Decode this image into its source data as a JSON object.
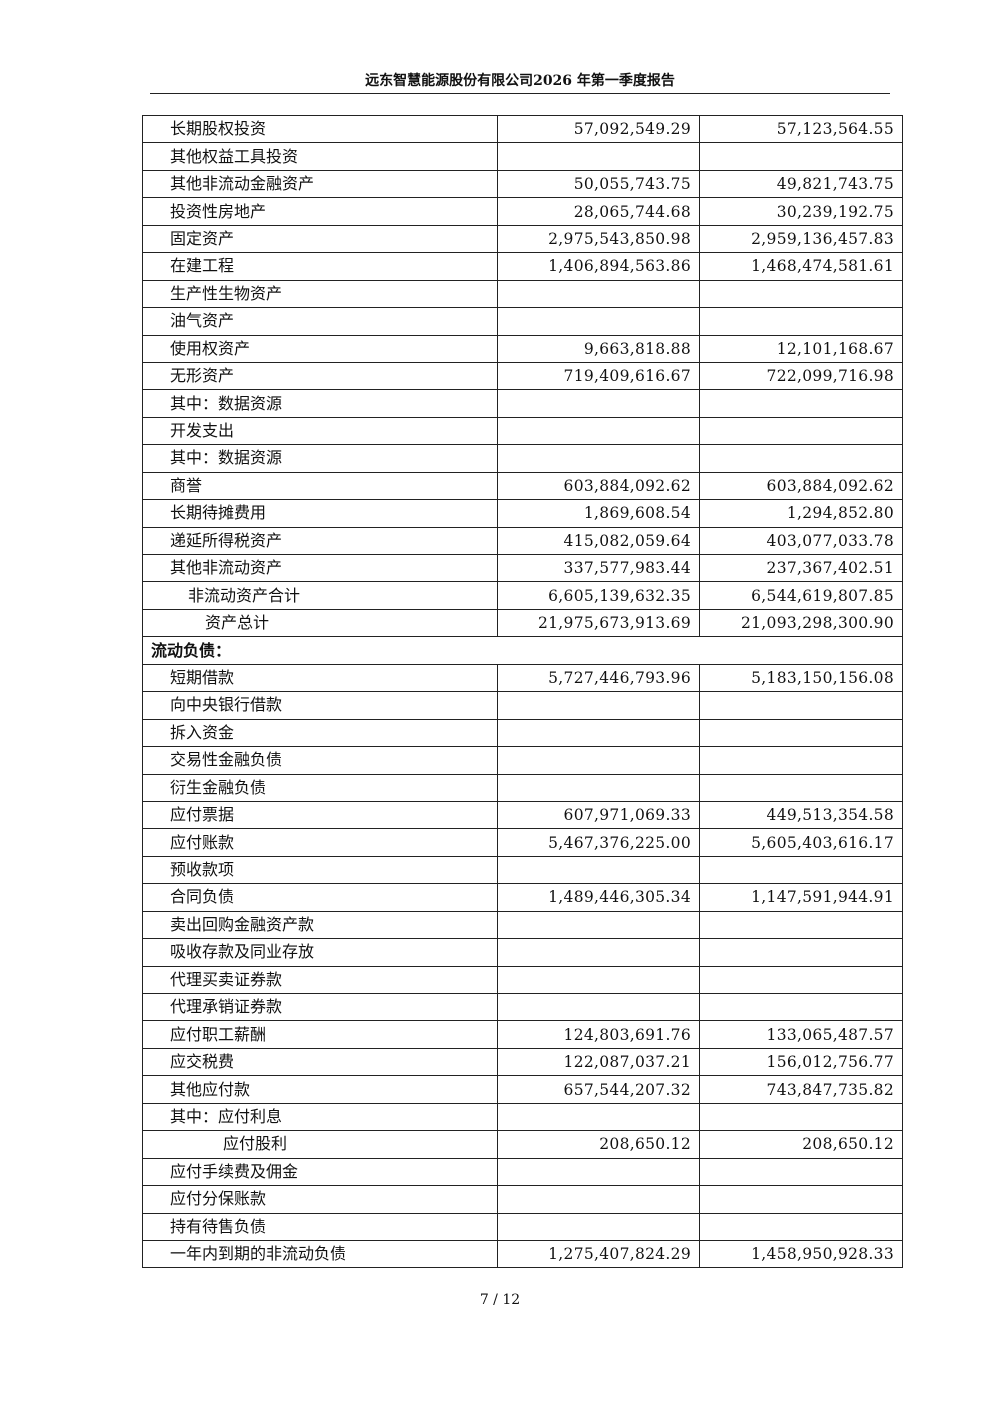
{
  "header": {
    "title": "远东智慧能源股份有限公司2026 年第一季度报告"
  },
  "footer": {
    "page": "7 / 12"
  },
  "rows": [
    {
      "label": "长期股权投资",
      "a": "57,092,549.29",
      "b": "57,123,564.55"
    },
    {
      "label": "其他权益工具投资",
      "a": "",
      "b": ""
    },
    {
      "label": "其他非流动金融资产",
      "a": "50,055,743.75",
      "b": "49,821,743.75"
    },
    {
      "label": "投资性房地产",
      "a": "28,065,744.68",
      "b": "30,239,192.75"
    },
    {
      "label": "固定资产",
      "a": "2,975,543,850.98",
      "b": "2,959,136,457.83"
    },
    {
      "label": "在建工程",
      "a": "1,406,894,563.86",
      "b": "1,468,474,581.61"
    },
    {
      "label": "生产性生物资产",
      "a": "",
      "b": ""
    },
    {
      "label": "油气资产",
      "a": "",
      "b": ""
    },
    {
      "label": "使用权资产",
      "a": "9,663,818.88",
      "b": "12,101,168.67"
    },
    {
      "label": "无形资产",
      "a": "719,409,616.67",
      "b": "722,099,716.98"
    },
    {
      "label": "其中：数据资源",
      "a": "",
      "b": ""
    },
    {
      "label": "开发支出",
      "a": "",
      "b": ""
    },
    {
      "label": "其中：数据资源",
      "a": "",
      "b": ""
    },
    {
      "label": "商誉",
      "a": "603,884,092.62",
      "b": "603,884,092.62"
    },
    {
      "label": "长期待摊费用",
      "a": "1,869,608.54",
      "b": "1,294,852.80"
    },
    {
      "label": "递延所得税资产",
      "a": "415,082,059.64",
      "b": "403,077,033.78"
    },
    {
      "label": "其他非流动资产",
      "a": "337,577,983.44",
      "b": "237,367,402.51"
    },
    {
      "label": "非流动资产合计",
      "a": "6,605,139,632.35",
      "b": "6,544,619,807.85",
      "indent": 1
    },
    {
      "label": "资产总计",
      "a": "21,975,673,913.69",
      "b": "21,093,298,300.90",
      "indent": 2
    },
    {
      "label": "流动负债：",
      "section": true
    },
    {
      "label": "短期借款",
      "a": "5,727,446,793.96",
      "b": "5,183,150,156.08"
    },
    {
      "label": "向中央银行借款",
      "a": "",
      "b": ""
    },
    {
      "label": "拆入资金",
      "a": "",
      "b": ""
    },
    {
      "label": "交易性金融负债",
      "a": "",
      "b": ""
    },
    {
      "label": "衍生金融负债",
      "a": "",
      "b": ""
    },
    {
      "label": "应付票据",
      "a": "607,971,069.33",
      "b": "449,513,354.58"
    },
    {
      "label": "应付账款",
      "a": "5,467,376,225.00",
      "b": "5,605,403,616.17"
    },
    {
      "label": "预收款项",
      "a": "",
      "b": ""
    },
    {
      "label": "合同负债",
      "a": "1,489,446,305.34",
      "b": "1,147,591,944.91"
    },
    {
      "label": "卖出回购金融资产款",
      "a": "",
      "b": ""
    },
    {
      "label": "吸收存款及同业存放",
      "a": "",
      "b": ""
    },
    {
      "label": "代理买卖证券款",
      "a": "",
      "b": ""
    },
    {
      "label": "代理承销证券款",
      "a": "",
      "b": ""
    },
    {
      "label": "应付职工薪酬",
      "a": "124,803,691.76",
      "b": "133,065,487.57"
    },
    {
      "label": "应交税费",
      "a": "122,087,037.21",
      "b": "156,012,756.77"
    },
    {
      "label": "其他应付款",
      "a": "657,544,207.32",
      "b": "743,847,735.82"
    },
    {
      "label": "其中：应付利息",
      "a": "",
      "b": ""
    },
    {
      "label": "应付股利",
      "a": "208,650.12",
      "b": "208,650.12",
      "indent": 3
    },
    {
      "label": "应付手续费及佣金",
      "a": "",
      "b": ""
    },
    {
      "label": "应付分保账款",
      "a": "",
      "b": ""
    },
    {
      "label": "持有待售负债",
      "a": "",
      "b": ""
    },
    {
      "label": "一年内到期的非流动负债",
      "a": "1,275,407,824.29",
      "b": "1,458,950,928.33"
    }
  ]
}
